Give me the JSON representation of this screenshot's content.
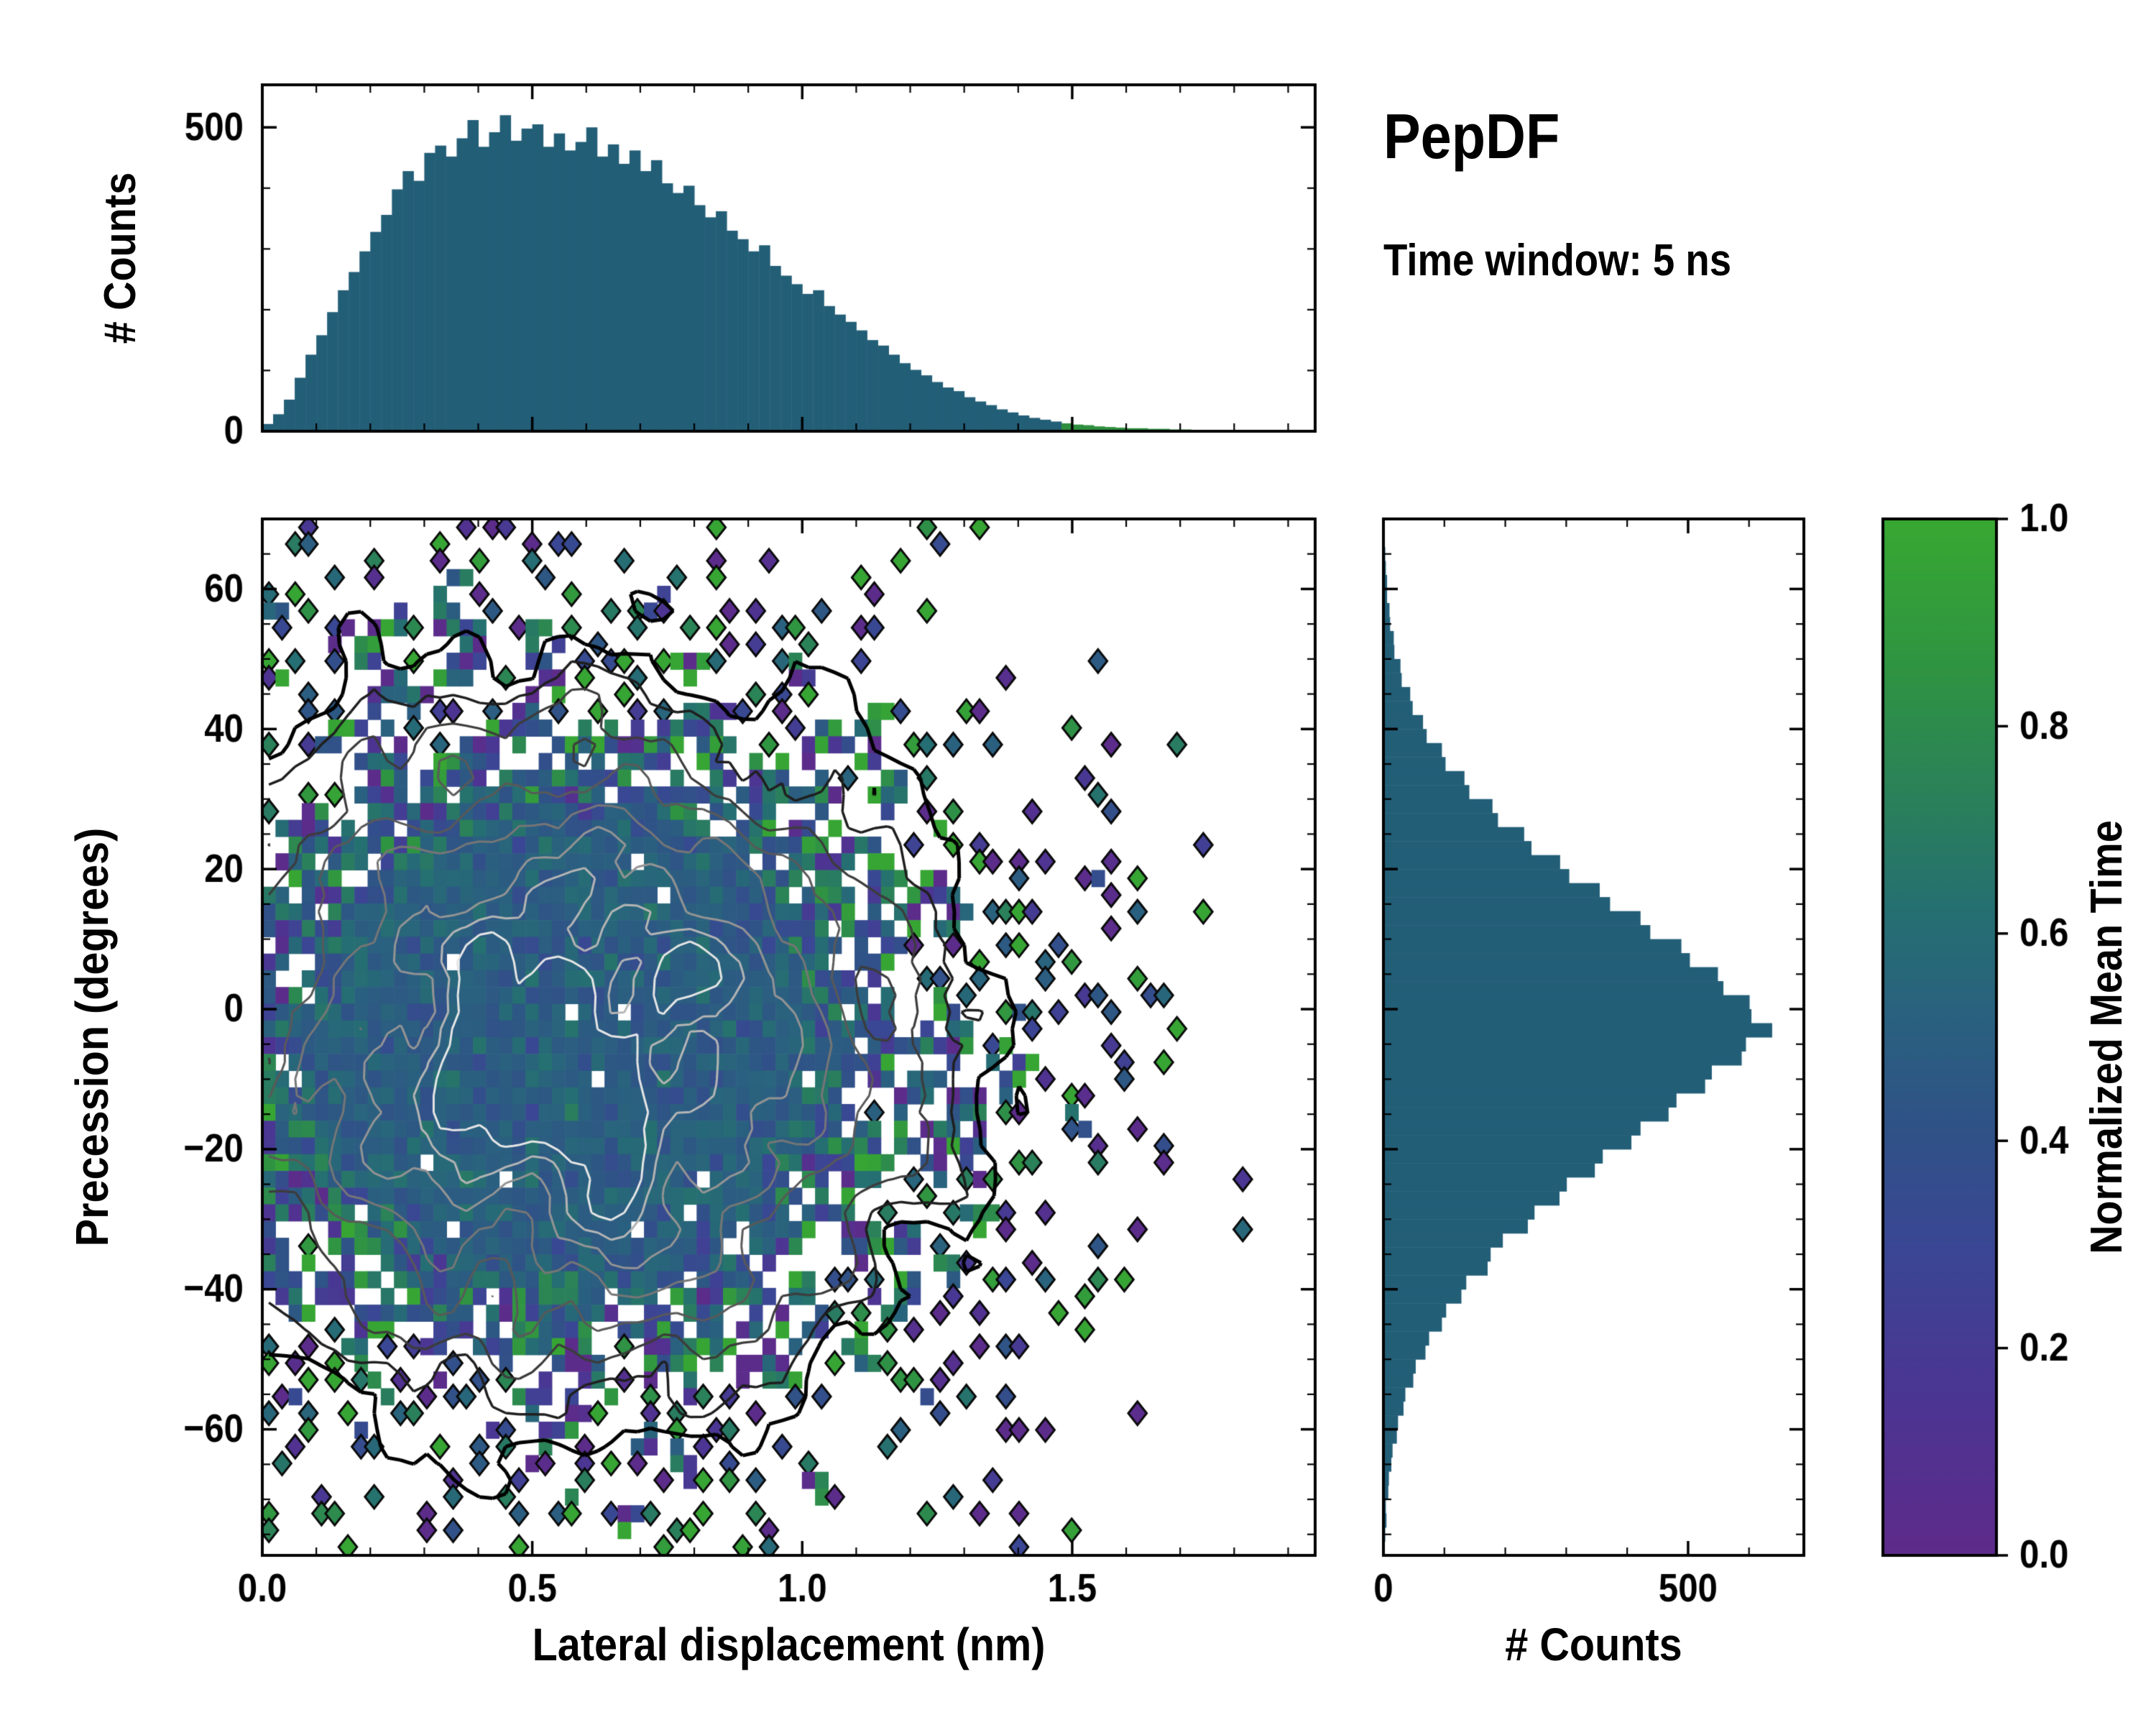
{
  "title": "PepDF",
  "colors": {
    "background": "#ffffff",
    "axis": "#000000",
    "bar": "#235e77",
    "bar_green": "#2f8f3e",
    "diamond_outline": "#0a0a0a"
  },
  "chart_data": {
    "type": "heatmap",
    "title": "PepDF",
    "annotation": "Time window: 5 ns",
    "main": {
      "xlabel": "Lateral displacement (nm)",
      "ylabel": "Precession (degrees)",
      "xlim": [
        0,
        1.95
      ],
      "ylim": [
        -78,
        70
      ],
      "x_ticks": {
        "values": [
          0,
          0.5,
          1.0,
          1.5
        ],
        "labels": [
          "0.0",
          "0.5",
          "1.0",
          "1.5"
        ]
      },
      "y_ticks": {
        "values": [
          -60,
          -40,
          -20,
          0,
          20,
          40,
          60
        ],
        "labels": [
          "−60",
          "−40",
          "−20",
          "0",
          "20",
          "40",
          "60"
        ]
      },
      "x_minor_step": 0.1,
      "y_minor_step": 5,
      "grid": {
        "nx": 80,
        "ny": 62
      },
      "density": {
        "seed": 20240,
        "cx": 0.56,
        "cy": -5,
        "sx": 0.34,
        "sy": 24,
        "fill_exp": 0.5,
        "fill_gain": 1.6,
        "fill_offset": -0.02,
        "fill_cap": 0.985,
        "noise_rel": 0.35,
        "noise_abs": 0.035
      },
      "value_model": {
        "center": 0.5,
        "base_spread": 0.07,
        "edge_spread": 0.4,
        "edge_scale": 2.2
      },
      "contours": {
        "levels": [
          0.055,
          0.1,
          0.17,
          0.27,
          0.4,
          0.54,
          0.68,
          0.82
        ],
        "colors": [
          "#000000",
          "#1f1f1f",
          "#3c3c3c",
          "#595959",
          "#767676",
          "#949494",
          "#b5b5b5",
          "#e6e6e6"
        ],
        "widths": [
          5,
          3.5,
          3.2,
          3,
          3,
          3,
          3,
          3
        ]
      }
    },
    "top_hist": {
      "ylabel": "# Counts",
      "y_ticks": {
        "values": [
          0,
          500
        ],
        "labels": [
          "0",
          "500"
        ]
      },
      "y_minor_step": 100,
      "ymax": 570,
      "bin_start": 0,
      "bin_width": 0.02,
      "green_from": 1.47,
      "counts": [
        12,
        28,
        52,
        88,
        126,
        158,
        196,
        232,
        262,
        296,
        328,
        356,
        398,
        428,
        412,
        458,
        470,
        452,
        482,
        512,
        468,
        492,
        520,
        478,
        498,
        505,
        468,
        490,
        462,
        476,
        500,
        452,
        472,
        440,
        462,
        428,
        446,
        408,
        392,
        404,
        372,
        352,
        362,
        330,
        316,
        296,
        306,
        272,
        256,
        242,
        226,
        232,
        206,
        192,
        180,
        166,
        150,
        141,
        126,
        112,
        101,
        92,
        81,
        72,
        66,
        56,
        49,
        43,
        36,
        31,
        26,
        22,
        19,
        16,
        13,
        11,
        10,
        8,
        7,
        6,
        5,
        5,
        4,
        4,
        3,
        3,
        2,
        2,
        2,
        1,
        1,
        1,
        1,
        1,
        0,
        1
      ]
    },
    "right_hist": {
      "xlabel": "# Counts",
      "x_ticks": {
        "values": [
          0,
          500
        ],
        "labels": [
          "0",
          "500"
        ]
      },
      "x_minor_step": 100,
      "xmax": 690,
      "bin_start": -78,
      "bin_width": 2,
      "counts": [
        2,
        3,
        5,
        4,
        8,
        9,
        13,
        15,
        22,
        24,
        33,
        36,
        49,
        53,
        69,
        75,
        96,
        103,
        128,
        136,
        171,
        176,
        196,
        237,
        248,
        289,
        301,
        347,
        360,
        407,
        422,
        468,
        481,
        528,
        539,
        588,
        595,
        638,
        604,
        601,
        558,
        549,
        503,
        489,
        438,
        422,
        372,
        355,
        305,
        290,
        243,
        231,
        188,
        179,
        141,
        133,
        102,
        96,
        71,
        65,
        48,
        44,
        30,
        28,
        18,
        17,
        11,
        10,
        6,
        6,
        4,
        3,
        2,
        2
      ]
    },
    "colorbar": {
      "label": "Normalized Mean Time",
      "ticks": {
        "values": [
          0,
          0.2,
          0.4,
          0.6,
          0.8,
          1.0
        ],
        "labels": [
          "0.0",
          "0.2",
          "0.4",
          "0.6",
          "0.8",
          "1.0"
        ]
      },
      "colormap": [
        [
          0.0,
          "#5e2b8a"
        ],
        [
          0.15,
          "#4c3593"
        ],
        [
          0.3,
          "#3a4794"
        ],
        [
          0.42,
          "#2f5386"
        ],
        [
          0.52,
          "#2a617f"
        ],
        [
          0.62,
          "#256f72"
        ],
        [
          0.72,
          "#2a7f5c"
        ],
        [
          0.85,
          "#2f9343"
        ],
        [
          1.0,
          "#38a832"
        ]
      ]
    }
  }
}
